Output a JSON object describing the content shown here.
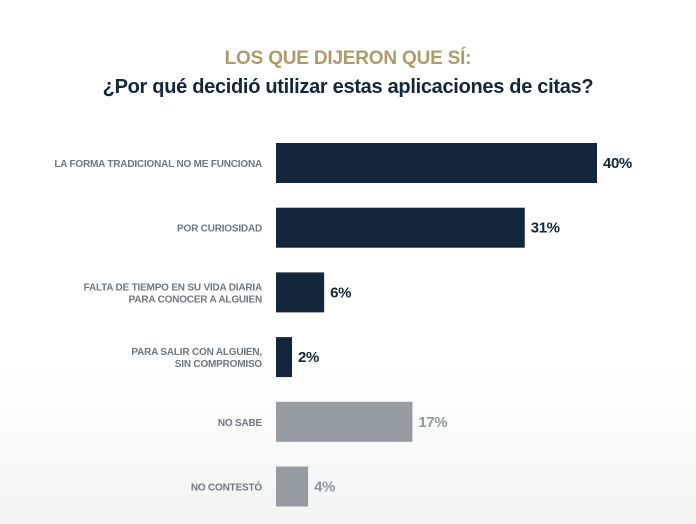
{
  "colors": {
    "title_accent": "#b09a6b",
    "title_main": "#13263a",
    "bar_primary": "#13263a",
    "bar_secondary": "#959ca2",
    "label_text": "#6f777d",
    "value_primary": "#13263a",
    "value_secondary": "#8f969c"
  },
  "chart_data": {
    "type": "bar",
    "orientation": "horizontal",
    "title": "LOS QUE DIJERON QUE SÍ:",
    "subtitle": "¿Por qué decidió utilizar estas aplicaciones de citas?",
    "xlabel": "",
    "ylabel": "",
    "unit": "%",
    "xlim": [
      0,
      40
    ],
    "grid": false,
    "legend": "none",
    "categories": [
      [
        "LA FORMA TRADICIONAL NO ME FUNCIONA"
      ],
      [
        "POR CURIOSIDAD"
      ],
      [
        "FALTA DE TIEMPO EN SU VIDA DIARIA",
        "PARA CONOCER A ALGUIEN"
      ],
      [
        "PARA SALIR CON ALGUIEN,",
        "SIN COMPROMISO"
      ],
      [
        "NO SABE"
      ],
      [
        "NO CONTESTÓ"
      ]
    ],
    "values": [
      40,
      31,
      6,
      2,
      17,
      4
    ],
    "value_labels": [
      "40%",
      "31%",
      "6%",
      "2%",
      "17%",
      "4%"
    ],
    "group": [
      "primary",
      "primary",
      "primary",
      "primary",
      "secondary",
      "secondary"
    ]
  }
}
